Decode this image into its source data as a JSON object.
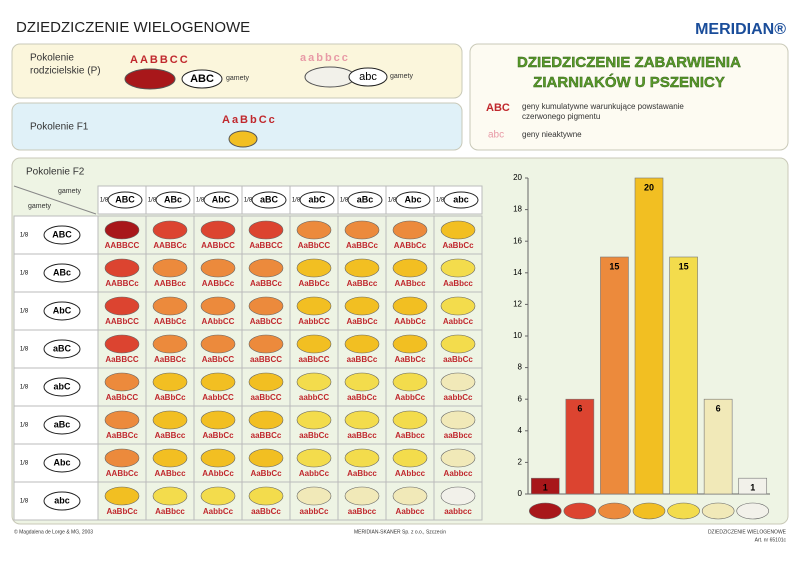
{
  "header": {
    "title": "DZIEDZICZENIE WIELOGENOWE",
    "brand": "MERIDIAN®"
  },
  "parental": {
    "label_lines": [
      "Pokolenie",
      "rodzicielskie (P)"
    ],
    "gametes_label": "gamety",
    "parent_1": {
      "genotype": "AABBCC",
      "gamete": "ABC"
    },
    "parent_2": {
      "genotype": "aabbcc",
      "gamete": "abc"
    }
  },
  "f1": {
    "label": "Pokolenie F1",
    "genotype": "AaBbCc"
  },
  "info": {
    "title_lines": [
      "DZIEDZICZENIE ZABARWIENIA",
      "ZIARNIAKÓW U PSZENICY"
    ],
    "legend": [
      {
        "symbol": "ABC",
        "text_lines": [
          "geny kumulatywne warunkujące powstawanie",
          "czerwonego pigmentu"
        ]
      },
      {
        "symbol": "abc",
        "text_lines": [
          "geny nieaktywne"
        ]
      }
    ]
  },
  "f2": {
    "label": "Pokolenie F2",
    "corner_label": "gamety",
    "fraction": "1/8",
    "gametes": [
      "ABC",
      "ABc",
      "AbC",
      "aBC",
      "abC",
      "aBc",
      "Abc",
      "abc"
    ],
    "genotypes": [
      [
        "AABBCC",
        "AABBCc",
        "AABbCC",
        "AaBBCC",
        "AaBbCC",
        "AaBBCc",
        "AABbCc",
        "AaBbCc"
      ],
      [
        "AABBCc",
        "AABBcc",
        "AABbCc",
        "AaBBCc",
        "AaBbCc",
        "AaBBcc",
        "AABbcc",
        "AaBbcc"
      ],
      [
        "AABbCC",
        "AABbCc",
        "AAbbCC",
        "AaBbCC",
        "AabbCC",
        "AaBbCc",
        "AAbbCc",
        "AabbCc"
      ],
      [
        "AaBBCC",
        "AaBBCc",
        "AaBbCC",
        "aaBBCC",
        "aaBbCC",
        "aaBBCc",
        "AaBbCc",
        "aaBbCc"
      ],
      [
        "AaBbCC",
        "AaBbCc",
        "AabbCC",
        "aaBbCC",
        "aabbCC",
        "aaBbCc",
        "AabbCc",
        "aabbCc"
      ],
      [
        "AaBBCc",
        "AaBBcc",
        "AaBbCc",
        "aaBBCc",
        "aaBbCc",
        "aaBBcc",
        "AaBbcc",
        "aaBbcc"
      ],
      [
        "AABbCc",
        "AABbcc",
        "AAbbCc",
        "AaBbCc",
        "AabbCc",
        "AaBbcc",
        "AAbbcc",
        "Aabbcc"
      ],
      [
        "AaBbCc",
        "AaBbcc",
        "AabbCc",
        "aaBbCc",
        "aabbCc",
        "aaBbcc",
        "Aabbcc",
        "aabbcc"
      ]
    ]
  },
  "kernel_colors": [
    "#f2f1ea",
    "#f1e9b8",
    "#f3dc4c",
    "#f2bf22",
    "#ec8a3c",
    "#dc4430",
    "#a8171a"
  ],
  "chart_data": {
    "type": "bar",
    "categories": [
      null,
      null,
      null,
      null,
      null,
      null,
      null
    ],
    "values": [
      1,
      6,
      15,
      20,
      15,
      6,
      1
    ],
    "colors": [
      "#a8171a",
      "#dc4430",
      "#ec8a3c",
      "#f2bf22",
      "#f3dc4c",
      "#f1e9b8",
      "#f2f1ea"
    ],
    "ylim": [
      0,
      20
    ],
    "yticks": [
      0,
      2,
      4,
      6,
      8,
      10,
      12,
      14,
      16,
      18,
      20
    ]
  },
  "footer": {
    "copyright": "© Magdalena de Lorge & MG, 2003",
    "publisher": "MERIDIAN-SKANER Sp. z o.o., Szczecin",
    "product": "DZIEDZICZENIE WIELOGENOWE",
    "article": "Art. nr 65101c"
  }
}
